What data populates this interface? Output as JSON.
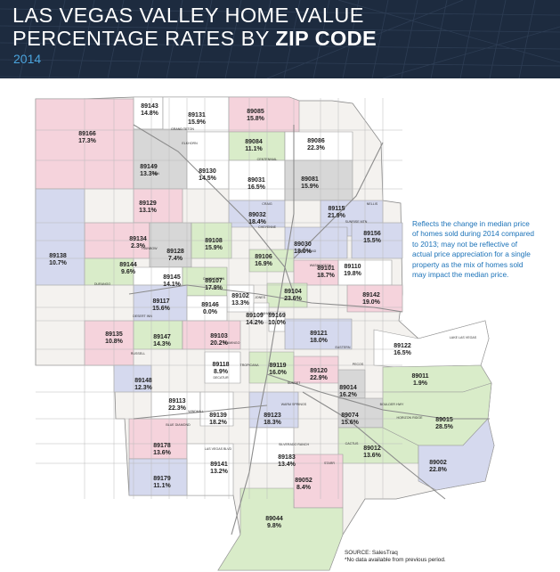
{
  "header": {
    "title_line1": "LAS VEGAS VALLEY HOME VALUE",
    "title_line2_regular": "PERCENTAGE RATES BY",
    "title_line2_bold": "ZIP CODE",
    "year": "2014"
  },
  "note": "Reflects the change in median price of homes sold during 2014 compared to 2013; may not be reflective of actual price appreciation for a single property as the mix of homes sold may impact the median price.",
  "source": {
    "line1": "SOURCE: SalesTraq",
    "line2": "*No data available from previous period."
  },
  "colors": {
    "header_bg": "#1d2b3f",
    "accent_blue": "#4aa3dc",
    "note_blue": "#1b72b8",
    "pink": "#f5d3dc",
    "green": "#d9ecc9",
    "lavender": "#d5d9ee",
    "grey": "#d7d7d7",
    "white": "#ffffff"
  },
  "zips": [
    {
      "zip": "89143",
      "pct": "14.8%"
    },
    {
      "zip": "89131",
      "pct": "15.9%"
    },
    {
      "zip": "89085",
      "pct": "15.8%"
    },
    {
      "zip": "89166",
      "pct": "17.3%"
    },
    {
      "zip": "89084",
      "pct": "11.1%"
    },
    {
      "zip": "89086",
      "pct": "22.3%"
    },
    {
      "zip": "89149",
      "pct": "13.3%"
    },
    {
      "zip": "89130",
      "pct": "14.5%"
    },
    {
      "zip": "89031",
      "pct": "16.5%"
    },
    {
      "zip": "89081",
      "pct": "15.9%"
    },
    {
      "zip": "89129",
      "pct": "13.1%"
    },
    {
      "zip": "89032",
      "pct": "18.4%"
    },
    {
      "zip": "89115",
      "pct": "21.9%"
    },
    {
      "zip": "89134",
      "pct": "2.3%"
    },
    {
      "zip": "89128",
      "pct": "7.4%"
    },
    {
      "zip": "89108",
      "pct": "15.9%"
    },
    {
      "zip": "89030",
      "pct": "18.0%"
    },
    {
      "zip": "89156",
      "pct": "15.5%"
    },
    {
      "zip": "89138",
      "pct": "10.7%"
    },
    {
      "zip": "89144",
      "pct": "9.6%"
    },
    {
      "zip": "89106",
      "pct": "16.9%"
    },
    {
      "zip": "89101",
      "pct": "18.7%"
    },
    {
      "zip": "89110",
      "pct": "19.8%"
    },
    {
      "zip": "89145",
      "pct": "14.1%"
    },
    {
      "zip": "89107",
      "pct": "17.9%"
    },
    {
      "zip": "89102",
      "pct": "13.3%"
    },
    {
      "zip": "89104",
      "pct": "23.6%"
    },
    {
      "zip": "89142",
      "pct": "19.0%"
    },
    {
      "zip": "89117",
      "pct": "15.6%"
    },
    {
      "zip": "89146",
      "pct": "0.0%"
    },
    {
      "zip": "89109",
      "pct": "14.2%"
    },
    {
      "zip": "89169",
      "pct": "10.0%"
    },
    {
      "zip": "89135",
      "pct": "10.8%"
    },
    {
      "zip": "89147",
      "pct": "14.3%"
    },
    {
      "zip": "89103",
      "pct": "20.2%"
    },
    {
      "zip": "89121",
      "pct": "18.0%"
    },
    {
      "zip": "89122",
      "pct": "16.5%"
    },
    {
      "zip": "89148",
      "pct": "12.3%"
    },
    {
      "zip": "89118",
      "pct": "8.9%"
    },
    {
      "zip": "89119",
      "pct": "16.0%"
    },
    {
      "zip": "89120",
      "pct": "22.9%"
    },
    {
      "zip": "89014",
      "pct": "16.2%"
    },
    {
      "zip": "89011",
      "pct": "1.9%"
    },
    {
      "zip": "89113",
      "pct": "22.3%"
    },
    {
      "zip": "89139",
      "pct": "18.2%"
    },
    {
      "zip": "89123",
      "pct": "18.3%"
    },
    {
      "zip": "89074",
      "pct": "15.6%"
    },
    {
      "zip": "89015",
      "pct": "28.5%"
    },
    {
      "zip": "89178",
      "pct": "13.6%"
    },
    {
      "zip": "89012",
      "pct": "13.6%"
    },
    {
      "zip": "89141",
      "pct": "13.2%"
    },
    {
      "zip": "89183",
      "pct": "13.4%"
    },
    {
      "zip": "89002",
      "pct": "22.8%"
    },
    {
      "zip": "89179",
      "pct": "11.1%"
    },
    {
      "zip": "89052",
      "pct": "8.4%"
    },
    {
      "zip": "89044",
      "pct": "9.8%"
    }
  ],
  "streets": [
    {
      "name": "GRAND TETON"
    },
    {
      "name": "ELKHORN"
    },
    {
      "name": "CENTENNIAL"
    },
    {
      "name": "ANN"
    },
    {
      "name": "CRAIG"
    },
    {
      "name": "CHEYENNE"
    },
    {
      "name": "LAKE MEAD"
    },
    {
      "name": "WASHINGTON"
    },
    {
      "name": "CHARLESTON"
    },
    {
      "name": "SAHARA"
    },
    {
      "name": "DESERT INN"
    },
    {
      "name": "FLAMINGO"
    },
    {
      "name": "TROPICANA"
    },
    {
      "name": "RUSSELL"
    },
    {
      "name": "SUNSET"
    },
    {
      "name": "WARM SPRINGS"
    },
    {
      "name": "WINDMILL"
    },
    {
      "name": "BLUE DIAMOND"
    },
    {
      "name": "SILVERADO RANCH"
    },
    {
      "name": "CACTUS"
    },
    {
      "name": "STARR"
    },
    {
      "name": "HORIZON RIDGE"
    },
    {
      "name": "LAKE LAS VEGAS"
    },
    {
      "name": "NELLIS"
    },
    {
      "name": "LAS VEGAS BLVD"
    },
    {
      "name": "RAINBOW"
    },
    {
      "name": "DURANGO"
    },
    {
      "name": "JONES"
    },
    {
      "name": "DECATUR"
    },
    {
      "name": "EASTERN"
    },
    {
      "name": "PECOS"
    },
    {
      "name": "BOULDER HWY"
    },
    {
      "name": "SUNRISE MTN"
    }
  ]
}
